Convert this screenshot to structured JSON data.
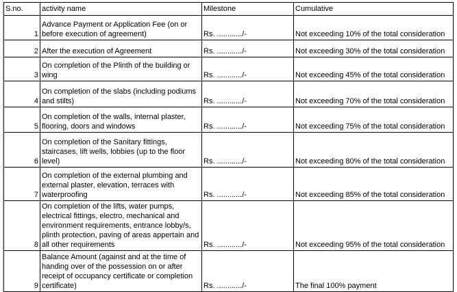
{
  "header": {
    "sno": "S.no.",
    "activity": "activity name",
    "milestone": "Milestone",
    "cumulative": "Cumulative"
  },
  "rows": [
    {
      "sno": "1",
      "activity": "Advance Payment or Application Fee (on or before execution of agreement)",
      "milestone": "Rs. ............/-",
      "cumulative": "Not exceeding 10% of the total consideration"
    },
    {
      "sno": "2",
      "activity": "After the execution of Agreement",
      "milestone": "Rs. ............/-",
      "cumulative": "Not exceeding 30% of the total consideration"
    },
    {
      "sno": "3",
      "activity": "On completion of the Plinth of the building or wing",
      "milestone": "Rs. ............/-",
      "cumulative": "Not exceeding 45% of the total consideration"
    },
    {
      "sno": "4",
      "activity": "On completion of the slabs (including podiums and stilts)",
      "milestone": "Rs. ............/-",
      "cumulative": "Not exceeding 70% of the total consideration"
    },
    {
      "sno": "5",
      "activity": "On completion of the walls, internal plaster, flooring, doors and windows",
      "milestone": "Rs. ............/-",
      "cumulative": "Not exceeding 75% of the total consideration"
    },
    {
      "sno": "6",
      "activity": "On completion of the Sanitary fittings, staircases, lift wells, lobbies (up to the floor level)",
      "milestone": "Rs. ............/-",
      "cumulative": "Not exceeding 80% of the total consideration"
    },
    {
      "sno": "7",
      "activity": "On completion of the external plumbing and external plaster, elevation, terraces with waterproofing",
      "milestone": "Rs. ............/-",
      "cumulative": "Not exceeding 85% of the total consideration"
    },
    {
      "sno": "8",
      "activity": "On completion of the lifts, water pumps, electrical fittings, electro, mechanical and environment requirements, entrance lobby/s, plinth protection, paving of areas appertain and all other requirements",
      "milestone": "Rs. ............/-",
      "cumulative": "Not exceeding 95% of the total consideration"
    },
    {
      "sno": "9",
      "activity": "Balance Amount (against and at the time of handing over of the possession on or after receipt of occupancy certificate or completion certificate)",
      "milestone": "Rs. ............/-",
      "cumulative": "The final 100% payment"
    }
  ]
}
